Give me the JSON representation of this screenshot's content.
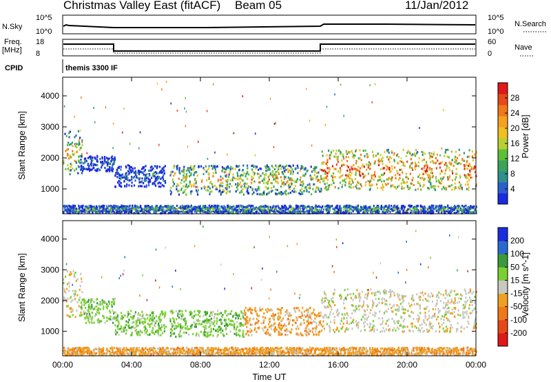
{
  "header": {
    "title": "Christmas Valley East (fitACF)",
    "beam": "Beam 05",
    "date": "11/Jan/2012"
  },
  "status_panels": {
    "nsky_label": "N.Sky",
    "nsky_ticks": [
      "10^5",
      "10^0"
    ],
    "nsearch_label": "N.Search",
    "nsearch_ticks": [
      "10^5",
      "10^0"
    ],
    "freq_label": "Freq.",
    "freq_unit": "[MHz]",
    "freq_ticks": [
      "18",
      "8"
    ],
    "nave_label": "Nave",
    "nave_ticks": [
      "60",
      "0"
    ],
    "cpid_label": "CPID",
    "cpid_value": "themis 3300 IF"
  },
  "chart_data": [
    {
      "type": "heatmap",
      "name": "power",
      "ylabel": "Slant Range [km]",
      "ytick_labels": [
        "1000",
        "2000",
        "3000",
        "4000"
      ],
      "ylim": [
        200,
        4600
      ],
      "xlim": [
        0,
        24
      ],
      "colorbar": {
        "label": "Power [dB]",
        "ticks": [
          "4",
          "8",
          "12",
          "16",
          "20",
          "24",
          "28"
        ],
        "colors": [
          "#1a2be0",
          "#2b5fd0",
          "#2f8f8f",
          "#3aa35a",
          "#5fbf3a",
          "#b8d030",
          "#f0c020",
          "#f5a020",
          "#f07818",
          "#e84818",
          "#e01818"
        ]
      },
      "bands": [
        {
          "x0": 0.0,
          "x1": 1.1,
          "r_lo": 1500,
          "r_hi": 2900,
          "level": 0.55
        },
        {
          "x0": 1.0,
          "x1": 3.0,
          "r_lo": 1600,
          "r_hi": 2100,
          "level": 0.15
        },
        {
          "x0": 3.0,
          "x1": 6.0,
          "r_lo": 1100,
          "r_hi": 1800,
          "level": 0.15
        },
        {
          "x0": 6.2,
          "x1": 15.0,
          "r_lo": 850,
          "r_hi": 1800,
          "level": 0.55
        },
        {
          "x0": 15.0,
          "x1": 24.0,
          "r_lo": 1000,
          "r_hi": 2300,
          "level": 0.75
        },
        {
          "x0": 0.0,
          "x1": 24.0,
          "r_lo": 250,
          "r_hi": 500,
          "level": 0.3
        }
      ]
    },
    {
      "type": "heatmap",
      "name": "velocity",
      "ylabel": "Slant Range [km]",
      "ytick_labels": [
        "1000",
        "2000",
        "3000",
        "4000"
      ],
      "ylim": [
        200,
        4600
      ],
      "xlim": [
        0,
        24
      ],
      "xticks": [
        "00:00",
        "04:00",
        "08:00",
        "12:00",
        "16:00",
        "20:00",
        "00:00"
      ],
      "xlabel": "Time UT",
      "colorbar": {
        "label": "Velocity [m s^-1]",
        "ticks": [
          "200",
          "100",
          "50",
          "15",
          "-15",
          "-50",
          "-100",
          "-200"
        ],
        "colors": [
          "#1a2be0",
          "#2a6ad0",
          "#3a9a3a",
          "#7ad030",
          "#c8c8c0",
          "#f0a020",
          "#f07818",
          "#e84818",
          "#e01818"
        ]
      },
      "bands": [
        {
          "x0": 0.0,
          "x1": 1.1,
          "r_lo": 1500,
          "r_hi": 3000,
          "vel": "grey"
        },
        {
          "x0": 1.0,
          "x1": 3.0,
          "r_lo": 1300,
          "r_hi": 2100,
          "vel": "green"
        },
        {
          "x0": 3.0,
          "x1": 6.0,
          "r_lo": 900,
          "r_hi": 1700,
          "vel": "green"
        },
        {
          "x0": 6.2,
          "x1": 10.5,
          "r_lo": 850,
          "r_hi": 1700,
          "vel": "green"
        },
        {
          "x0": 10.5,
          "x1": 15.0,
          "r_lo": 900,
          "r_hi": 1800,
          "vel": "orange"
        },
        {
          "x0": 15.0,
          "x1": 24.0,
          "r_lo": 1000,
          "r_hi": 2400,
          "vel": "grey"
        },
        {
          "x0": 0.0,
          "x1": 24.0,
          "r_lo": 250,
          "r_hi": 500,
          "vel": "orange"
        }
      ]
    }
  ]
}
